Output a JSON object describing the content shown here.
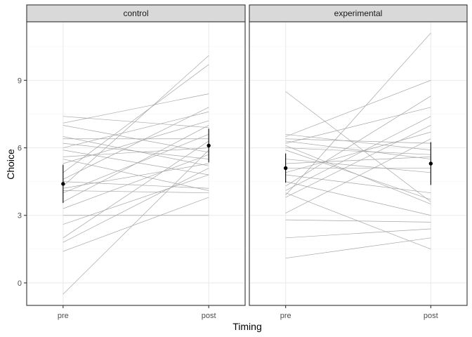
{
  "chart_data": {
    "type": "line",
    "xlabel": "Timing",
    "ylabel": "Choice",
    "categories": [
      "pre",
      "post"
    ],
    "ylim": [
      -1,
      11.6
    ],
    "y_ticks": [
      0,
      3,
      6,
      9
    ],
    "y_tick_labels": [
      "0",
      "3",
      "6",
      "9"
    ],
    "grid": true,
    "colors": {
      "strip": "#d9d9d9",
      "grid_major": "#ebebeb",
      "grid_minor": "#f5f5f5",
      "subject_line": "#a6a6a6",
      "summary": "#000000",
      "border": "#333333"
    },
    "facets": [
      {
        "name": "control",
        "mean": {
          "pre": 4.4,
          "post": 6.1
        },
        "error_bar": {
          "pre": [
            3.55,
            5.25
          ],
          "post": [
            5.35,
            6.85
          ]
        },
        "subjects": [
          [
            7.4,
            6.9
          ],
          [
            7.1,
            8.4
          ],
          [
            7.0,
            5.8
          ],
          [
            6.5,
            5.2
          ],
          [
            6.4,
            6.4
          ],
          [
            6.2,
            5.5
          ],
          [
            6.0,
            7.6
          ],
          [
            5.9,
            4.8
          ],
          [
            5.6,
            6.0
          ],
          [
            5.5,
            4.1
          ],
          [
            5.3,
            7.2
          ],
          [
            4.9,
            9.7
          ],
          [
            4.6,
            7.8
          ],
          [
            4.5,
            4.2
          ],
          [
            4.3,
            10.1
          ],
          [
            4.2,
            5.3
          ],
          [
            4.1,
            4.0
          ],
          [
            4.0,
            6.6
          ],
          [
            3.6,
            7.0
          ],
          [
            3.3,
            5.7
          ],
          [
            3.0,
            3.0
          ],
          [
            2.6,
            4.8
          ],
          [
            2.0,
            6.3
          ],
          [
            1.8,
            5.1
          ],
          [
            1.4,
            3.8
          ],
          [
            -0.5,
            5.9
          ]
        ]
      },
      {
        "name": "experimental",
        "mean": {
          "pre": 5.1,
          "post": 5.3
        },
        "error_bar": {
          "pre": [
            4.45,
            5.75
          ],
          "post": [
            4.35,
            6.25
          ]
        },
        "subjects": [
          [
            8.5,
            3.6
          ],
          [
            6.6,
            5.9
          ],
          [
            6.5,
            9.0
          ],
          [
            6.4,
            6.2
          ],
          [
            6.3,
            5.5
          ],
          [
            6.2,
            7.8
          ],
          [
            6.1,
            3.5
          ],
          [
            6.0,
            5.7
          ],
          [
            5.9,
            3.7
          ],
          [
            5.5,
            4.9
          ],
          [
            5.3,
            5.6
          ],
          [
            5.1,
            5.1
          ],
          [
            4.9,
            6.7
          ],
          [
            4.8,
            4.0
          ],
          [
            4.5,
            3.0
          ],
          [
            4.3,
            8.3
          ],
          [
            4.1,
            7.4
          ],
          [
            4.0,
            1.5
          ],
          [
            3.9,
            11.1
          ],
          [
            3.8,
            7.0
          ],
          [
            3.1,
            6.4
          ],
          [
            2.8,
            2.7
          ],
          [
            2.0,
            2.4
          ],
          [
            1.1,
            2.0
          ]
        ]
      }
    ]
  }
}
